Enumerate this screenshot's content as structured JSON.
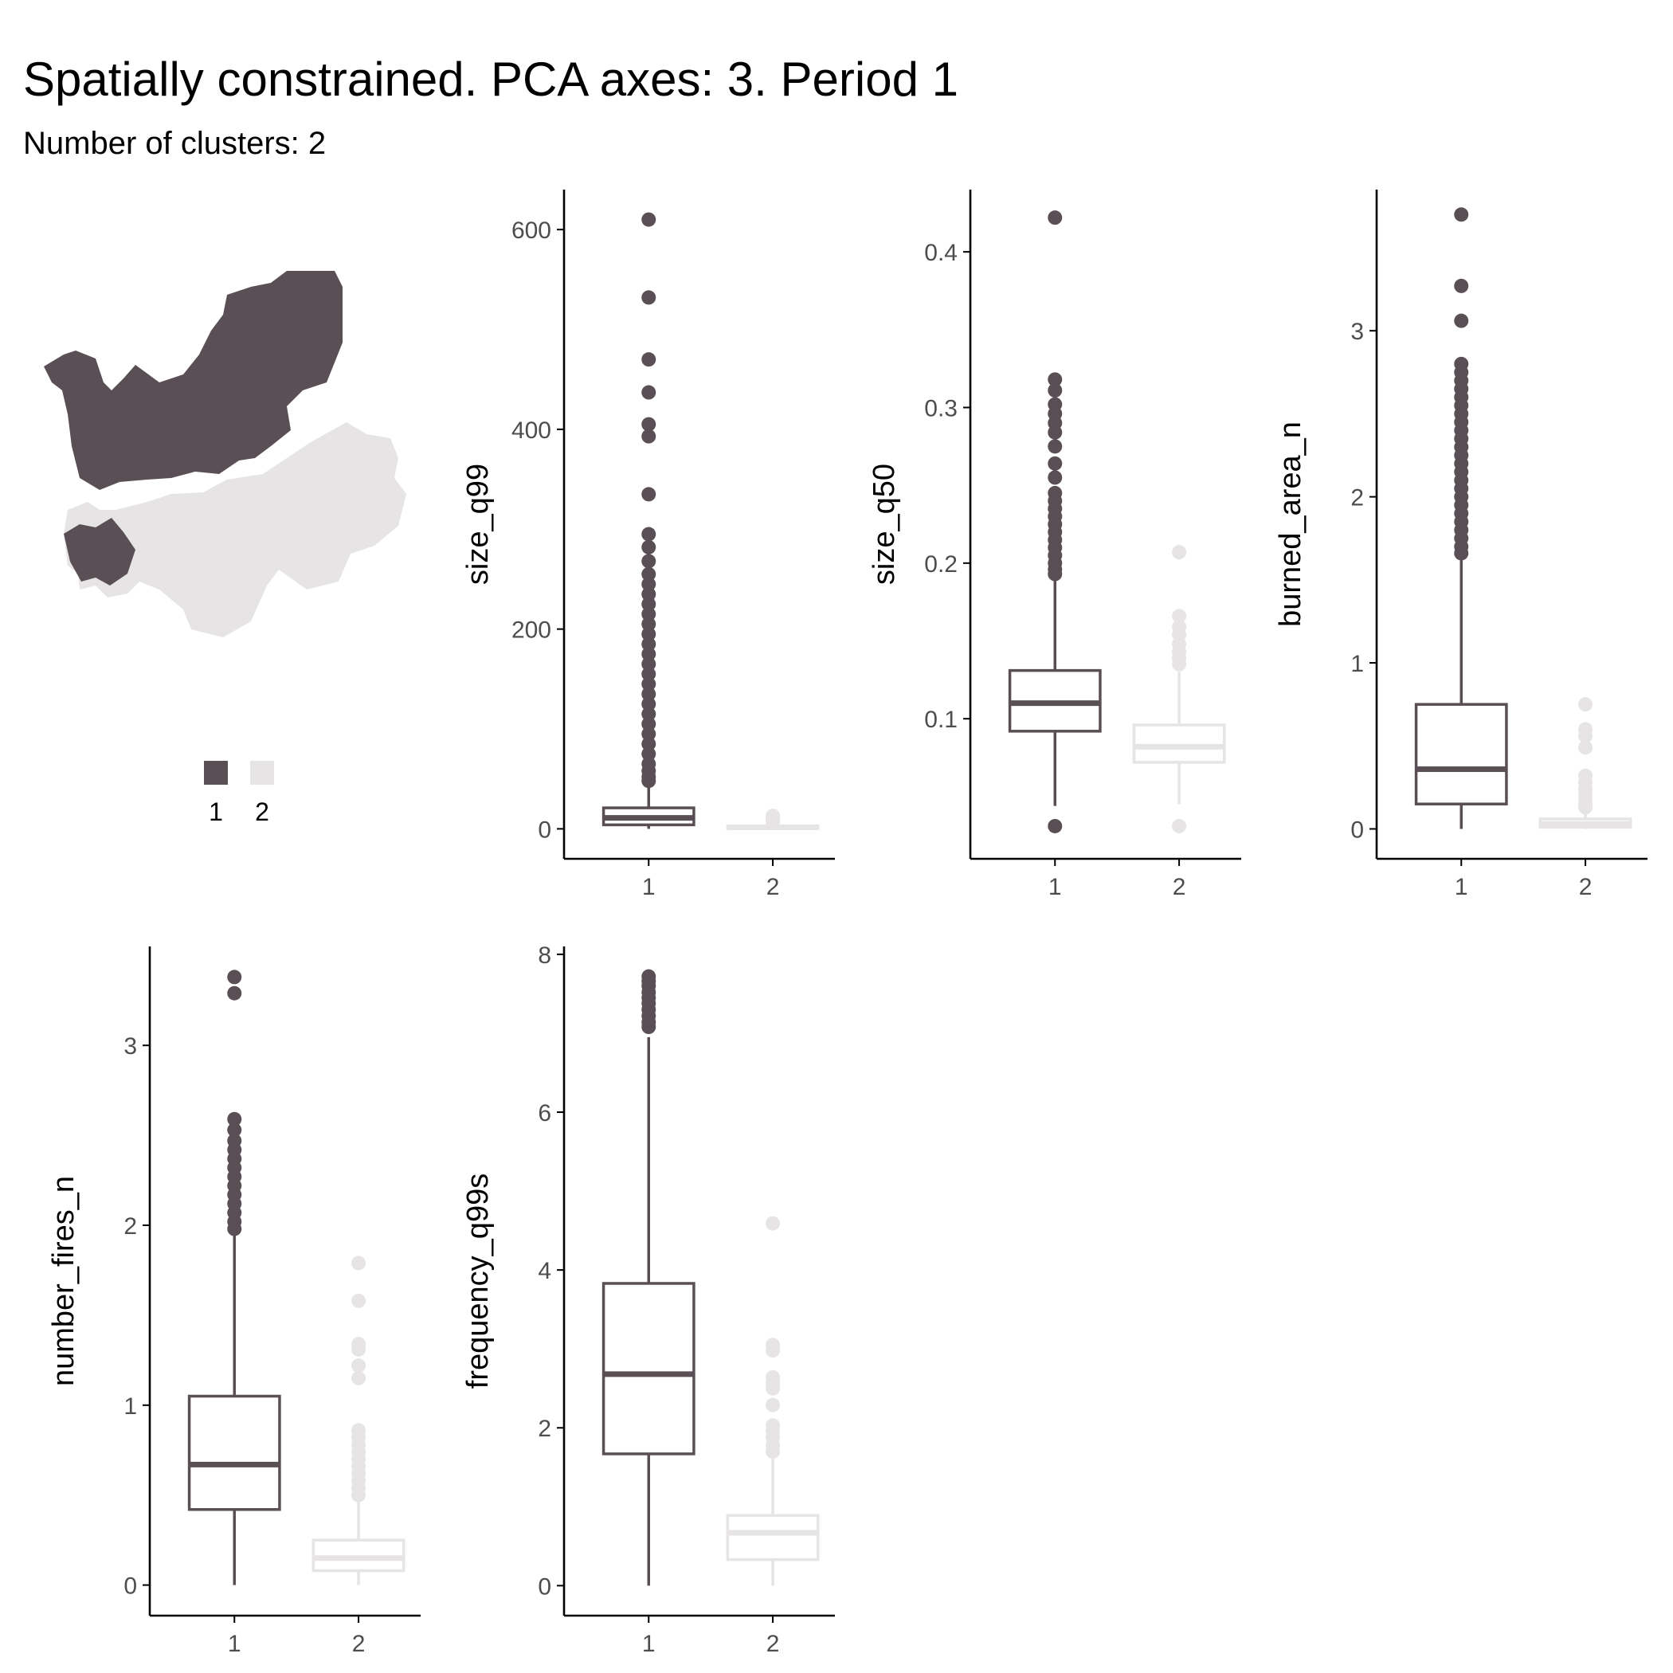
{
  "title": "Spatially constrained. PCA axes: 3. Period 1",
  "subtitle": "Number of clusters: 2",
  "colors": {
    "cluster1": "#5a4f55",
    "cluster2": "#e6e4e5",
    "axis": "#000000",
    "tick_label": "#4d4d4d"
  },
  "legend": {
    "items": [
      {
        "label": "1",
        "color": "#5a4f55"
      },
      {
        "label": "2",
        "color": "#e6e4e5"
      }
    ]
  },
  "chart_data": [
    {
      "type": "box",
      "ylabel": "size_q99",
      "categories": [
        "1",
        "2"
      ],
      "ylim": [
        -30,
        640
      ],
      "yticks": [
        0,
        200,
        400,
        600
      ],
      "boxes": [
        {
          "q1": 4,
          "median": 11,
          "q3": 21,
          "whisker_low": 0,
          "whisker_high": 46,
          "outliers": [
            610,
            532,
            470,
            437,
            405,
            393,
            335,
            295,
            282,
            268,
            255,
            245,
            235,
            225,
            215,
            205,
            195,
            185,
            175,
            165,
            155,
            145,
            135,
            125,
            115,
            105,
            95,
            85,
            75,
            65,
            58,
            52,
            48
          ]
        },
        {
          "q1": 0.5,
          "median": 1.5,
          "q3": 3,
          "whisker_low": 0,
          "whisker_high": 6,
          "outliers": [
            7,
            9,
            11,
            13
          ]
        }
      ]
    },
    {
      "type": "box",
      "ylabel": "size_q50",
      "categories": [
        "1",
        "2"
      ],
      "ylim": [
        0.01,
        0.44
      ],
      "yticks": [
        0.1,
        0.2,
        0.3,
        0.4
      ],
      "boxes": [
        {
          "q1": 0.092,
          "median": 0.11,
          "q3": 0.131,
          "whisker_low": 0.044,
          "whisker_high": 0.19,
          "outliers": [
            0.422,
            0.318,
            0.311,
            0.302,
            0.296,
            0.29,
            0.284,
            0.275,
            0.264,
            0.255,
            0.245,
            0.24,
            0.235,
            0.23,
            0.225,
            0.22,
            0.215,
            0.21,
            0.205,
            0.2,
            0.196,
            0.193,
            0.031
          ]
        },
        {
          "q1": 0.072,
          "median": 0.082,
          "q3": 0.096,
          "whisker_low": 0.045,
          "whisker_high": 0.13,
          "outliers": [
            0.207,
            0.166,
            0.159,
            0.154,
            0.148,
            0.143,
            0.139,
            0.135,
            0.031
          ]
        }
      ]
    },
    {
      "type": "box",
      "ylabel": "burned_area_n",
      "categories": [
        "1",
        "2"
      ],
      "ylim": [
        -0.18,
        3.85
      ],
      "yticks": [
        0,
        1,
        2,
        3
      ],
      "boxes": [
        {
          "q1": 0.15,
          "median": 0.36,
          "q3": 0.75,
          "whisker_low": 0,
          "whisker_high": 1.65,
          "outliers": [
            3.7,
            3.27,
            3.06,
            2.8,
            2.75,
            2.7,
            2.65,
            2.6,
            2.55,
            2.5,
            2.45,
            2.4,
            2.35,
            2.3,
            2.25,
            2.2,
            2.15,
            2.1,
            2.05,
            2.0,
            1.95,
            1.9,
            1.85,
            1.8,
            1.75,
            1.7,
            1.66
          ]
        },
        {
          "q1": 0.01,
          "median": 0.03,
          "q3": 0.06,
          "whisker_low": 0,
          "whisker_high": 0.12,
          "outliers": [
            0.75,
            0.6,
            0.56,
            0.49,
            0.32,
            0.28,
            0.24,
            0.21,
            0.18,
            0.15,
            0.13
          ]
        }
      ]
    },
    {
      "type": "box",
      "ylabel": "number_fires_n",
      "categories": [
        "1",
        "2"
      ],
      "ylim": [
        -0.17,
        3.55
      ],
      "yticks": [
        0,
        1,
        2,
        3
      ],
      "boxes": [
        {
          "q1": 0.42,
          "median": 0.67,
          "q3": 1.05,
          "whisker_low": 0,
          "whisker_high": 1.95,
          "outliers": [
            3.38,
            3.29,
            2.59,
            2.53,
            2.47,
            2.42,
            2.37,
            2.32,
            2.27,
            2.22,
            2.17,
            2.12,
            2.07,
            2.02,
            1.98
          ]
        },
        {
          "q1": 0.08,
          "median": 0.15,
          "q3": 0.25,
          "whisker_low": 0,
          "whisker_high": 0.48,
          "outliers": [
            1.79,
            1.58,
            1.34,
            1.31,
            1.22,
            1.15,
            0.86,
            0.82,
            0.78,
            0.74,
            0.7,
            0.66,
            0.62,
            0.58,
            0.54,
            0.5
          ]
        }
      ]
    },
    {
      "type": "box",
      "ylabel": "frequency_q99s",
      "categories": [
        "1",
        "2"
      ],
      "ylim": [
        -0.38,
        8.1
      ],
      "yticks": [
        0,
        2,
        4,
        6,
        8
      ],
      "boxes": [
        {
          "q1": 1.67,
          "median": 2.68,
          "q3": 3.83,
          "whisker_low": 0,
          "whisker_high": 6.95,
          "outliers": [
            7.72,
            7.66,
            7.6,
            7.52,
            7.45,
            7.38,
            7.3,
            7.22,
            7.14,
            7.08
          ]
        },
        {
          "q1": 0.33,
          "median": 0.67,
          "q3": 0.89,
          "whisker_low": 0,
          "whisker_high": 1.62,
          "outliers": [
            4.59,
            3.05,
            2.98,
            2.64,
            2.57,
            2.5,
            2.29,
            2.03,
            1.96,
            1.88,
            1.78,
            1.7
          ]
        }
      ]
    }
  ]
}
